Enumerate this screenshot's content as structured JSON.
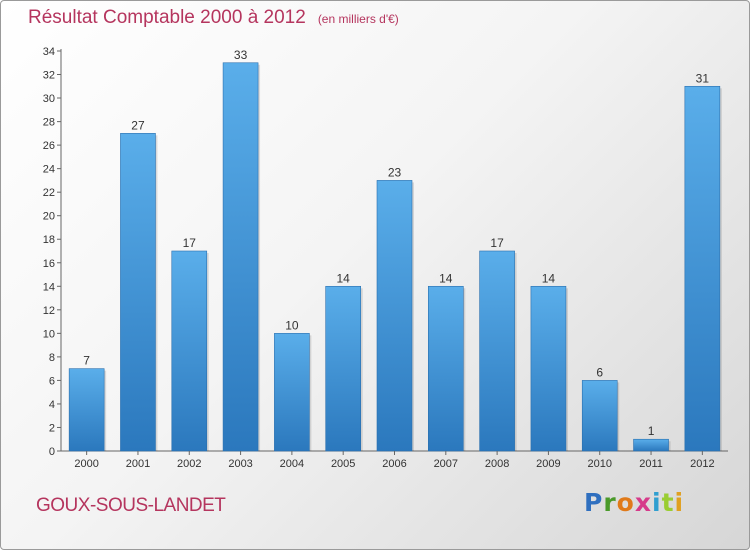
{
  "chart_data": {
    "type": "bar",
    "title": "Résultat Comptable 2000 à 2012",
    "subtitle": "(en milliers d'€)",
    "xlabel": "",
    "ylabel": "",
    "categories": [
      "2000",
      "2001",
      "2002",
      "2003",
      "2004",
      "2005",
      "2006",
      "2007",
      "2008",
      "2009",
      "2010",
      "2011",
      "2012"
    ],
    "values": [
      7,
      27,
      17,
      33,
      10,
      14,
      23,
      14,
      17,
      14,
      6,
      1,
      31
    ],
    "ylim": [
      0,
      34
    ],
    "ytick_step": 2,
    "grid": false,
    "bar_color": "#4a9ad8"
  },
  "location": "GOUX-SOUS-LANDET",
  "logo": {
    "text": "Proxiti",
    "letters": [
      {
        "ch": "P",
        "color": "#2f6fbf"
      },
      {
        "ch": "r",
        "color": "#4a9a2a"
      },
      {
        "ch": "o",
        "color": "#e07a1a"
      },
      {
        "ch": "x",
        "color": "#d63a8a"
      },
      {
        "ch": "i",
        "color": "#2f9fd0"
      },
      {
        "ch": "t",
        "color": "#9acd32"
      },
      {
        "ch": "i",
        "color": "#e0a020"
      }
    ]
  }
}
